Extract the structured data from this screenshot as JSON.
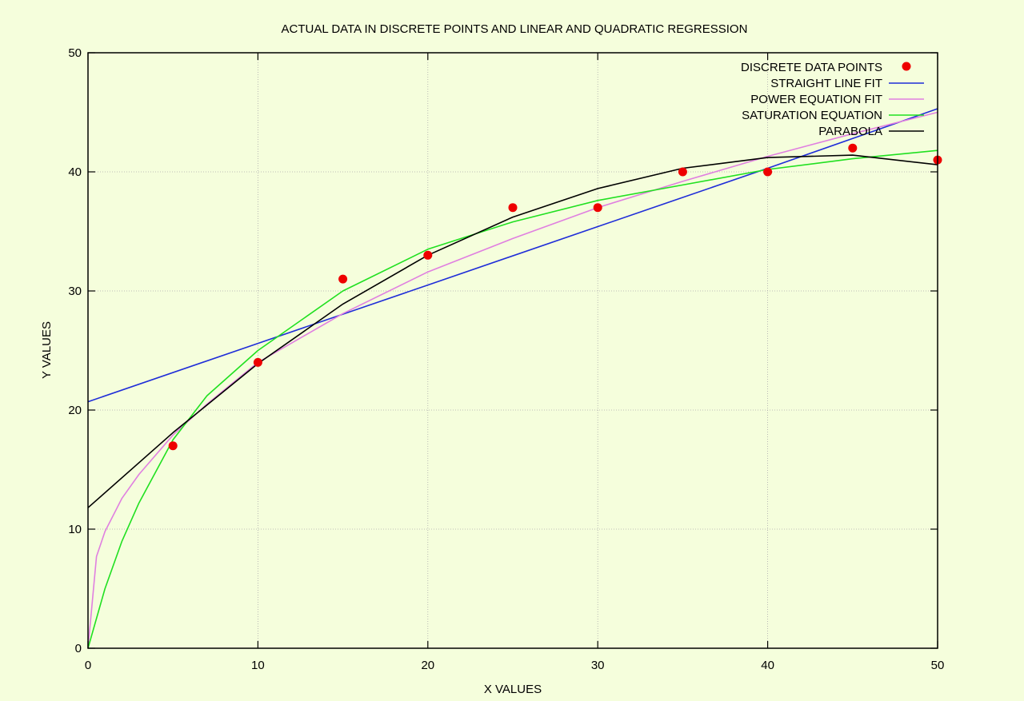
{
  "chart_data": {
    "type": "line",
    "title": "ACTUAL DATA IN DISCRETE POINTS AND LINEAR AND QUADRATIC REGRESSION",
    "xlabel": "X VALUES",
    "ylabel": "Y VALUES",
    "xlim": [
      0,
      50
    ],
    "ylim": [
      0,
      50
    ],
    "xticks": [
      "0",
      "10",
      "20",
      "30",
      "40",
      "50"
    ],
    "yticks": [
      "0",
      "10",
      "20",
      "30",
      "40",
      "50"
    ],
    "grid": true,
    "legend_position": "top-right",
    "points": {
      "name": "DISCRETE DATA POINTS",
      "color": "#ee0000",
      "x": [
        5,
        10,
        15,
        20,
        25,
        30,
        35,
        40,
        45,
        50
      ],
      "y": [
        17,
        24,
        31,
        33,
        37,
        37,
        40,
        40,
        42,
        41
      ]
    },
    "series": [
      {
        "name": "STRAIGHT LINE FIT",
        "color": "#1f2dd8",
        "x": [
          0,
          10,
          20,
          30,
          40,
          50
        ],
        "y": [
          20.7,
          25.6,
          30.5,
          35.4,
          40.3,
          45.3
        ]
      },
      {
        "name": "POWER EQUATION FIT",
        "color": "#e07fe0",
        "x": [
          0,
          0.5,
          1,
          2,
          3,
          5,
          7,
          10,
          15,
          20,
          25,
          30,
          35,
          40,
          45,
          50
        ],
        "y": [
          0,
          7.7,
          9.8,
          12.6,
          14.6,
          17.9,
          20.5,
          24.0,
          28.1,
          31.6,
          34.4,
          37.0,
          39.2,
          41.3,
          43.2,
          45.0
        ]
      },
      {
        "name": "SATURATION EQUATION",
        "color": "#20e020",
        "x": [
          0,
          1,
          2,
          3,
          5,
          7,
          10,
          15,
          20,
          25,
          30,
          35,
          40,
          45,
          50
        ],
        "y": [
          0,
          5.0,
          9.0,
          12.2,
          17.5,
          21.2,
          25.0,
          30.0,
          33.5,
          35.8,
          37.6,
          38.9,
          40.2,
          41.1,
          41.8
        ]
      },
      {
        "name": "PARABOLA",
        "color": "#000000",
        "x": [
          0,
          5,
          10,
          15,
          20,
          25,
          30,
          35,
          40,
          45,
          50
        ],
        "y": [
          11.8,
          18.1,
          23.9,
          28.9,
          33.0,
          36.2,
          38.6,
          40.3,
          41.2,
          41.4,
          40.6
        ]
      }
    ]
  },
  "colors": {
    "background": "#f5fedc",
    "grid": "#aaaaaa",
    "frame": "#000000"
  }
}
